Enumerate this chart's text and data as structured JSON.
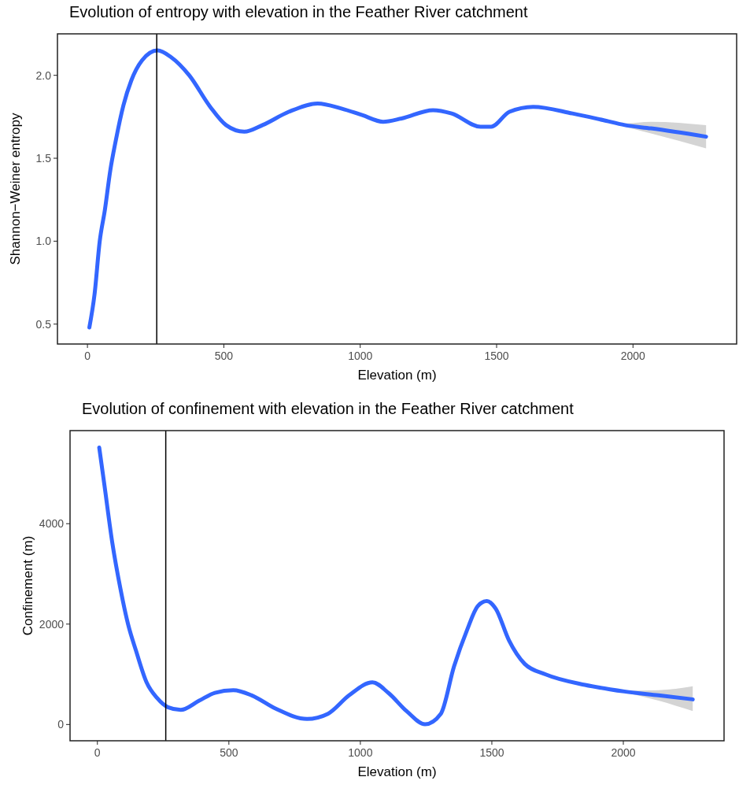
{
  "chart_data": [
    {
      "type": "line",
      "title": "Evolution of entropy with elevation in the Feather River catchment",
      "xlabel": "Elevation (m)",
      "ylabel": "Shannon−Weiner entropy",
      "xlim": [
        -110,
        2380
      ],
      "xticks": [
        0,
        500,
        1000,
        1500,
        2000
      ],
      "ylim": [
        0.38,
        2.25
      ],
      "yticks": [
        0.5,
        {
          "value": 1.0,
          "label": "1.0"
        },
        1.5,
        {
          "value": 2.0,
          "label": "2.0"
        }
      ],
      "ref_lines": [
        {
          "axis": "x",
          "value": 254,
          "color": "#000000"
        }
      ],
      "series": [
        {
          "color": "#3366ff",
          "x": [
            7,
            26,
            45,
            64,
            84,
            103,
            132,
            161,
            200,
            257,
            306,
            373,
            450,
            508,
            575,
            642,
            738,
            844,
            931,
            1007,
            1084,
            1152,
            1267,
            1335,
            1441,
            1480,
            1547,
            1634,
            1778,
            1890,
            1970,
            2066,
            2268
          ],
          "values": [
            0.48,
            0.68,
            1.0,
            1.19,
            1.43,
            1.6,
            1.82,
            1.97,
            2.09,
            2.15,
            2.11,
            2.0,
            1.81,
            1.7,
            1.66,
            1.7,
            1.78,
            1.83,
            1.8,
            1.76,
            1.72,
            1.74,
            1.79,
            1.77,
            1.69,
            1.69,
            1.78,
            1.81,
            1.77,
            1.73,
            1.7,
            1.68,
            1.63
          ],
          "lower": [
            null,
            null,
            null,
            null,
            null,
            null,
            null,
            null,
            null,
            null,
            null,
            null,
            null,
            null,
            null,
            null,
            null,
            null,
            null,
            null,
            null,
            null,
            null,
            null,
            null,
            null,
            null,
            null,
            null,
            1.73,
            1.69,
            1.65,
            1.56
          ],
          "upper": [
            null,
            null,
            null,
            null,
            null,
            null,
            null,
            null,
            null,
            null,
            null,
            null,
            null,
            null,
            null,
            null,
            null,
            null,
            null,
            null,
            null,
            null,
            null,
            null,
            null,
            null,
            null,
            null,
            null,
            1.73,
            1.71,
            1.72,
            1.7
          ]
        }
      ]
    },
    {
      "type": "line",
      "title": "Evolution of confinement with elevation in the Feather River catchment",
      "xlabel": "Elevation (m)",
      "ylabel": "Confinement (m)",
      "xlim": [
        -104,
        2383
      ],
      "xticks": [
        0,
        500,
        1000,
        1500,
        2000
      ],
      "ylim": [
        -324,
        5854
      ],
      "yticks": [
        0,
        2000,
        4000
      ],
      "ref_lines": [
        {
          "axis": "x",
          "value": 260,
          "color": "#000000"
        }
      ],
      "series": [
        {
          "color": "#3366ff",
          "x": [
            7,
            27,
            57,
            87,
            117,
            147,
            187,
            227,
            268,
            317,
            387,
            447,
            517,
            587,
            677,
            797,
            877,
            957,
            1046,
            1106,
            1176,
            1246,
            1306,
            1356,
            1406,
            1446,
            1481,
            1515,
            1565,
            1625,
            1705,
            1854,
            1950,
            2004,
            2134,
            2264
          ],
          "values": [
            5516,
            4757,
            3609,
            2721,
            1990,
            1467,
            840,
            527,
            345,
            292,
            475,
            632,
            684,
            580,
            318,
            110,
            214,
            580,
            840,
            632,
            266,
            5,
            214,
            1154,
            1886,
            2356,
            2461,
            2304,
            1677,
            1207,
            997,
            789,
            700,
            658,
            580,
            501
          ],
          "lower": [
            null,
            null,
            null,
            null,
            null,
            null,
            null,
            null,
            null,
            null,
            null,
            null,
            null,
            null,
            null,
            null,
            null,
            null,
            null,
            null,
            null,
            null,
            null,
            null,
            null,
            null,
            null,
            null,
            null,
            null,
            null,
            null,
            700,
            640,
            475,
            266
          ],
          "upper": [
            null,
            null,
            null,
            null,
            null,
            null,
            null,
            null,
            null,
            null,
            null,
            null,
            null,
            null,
            null,
            null,
            null,
            null,
            null,
            null,
            null,
            null,
            null,
            null,
            null,
            null,
            null,
            null,
            null,
            null,
            null,
            null,
            700,
            675,
            684,
            762
          ]
        }
      ]
    }
  ]
}
